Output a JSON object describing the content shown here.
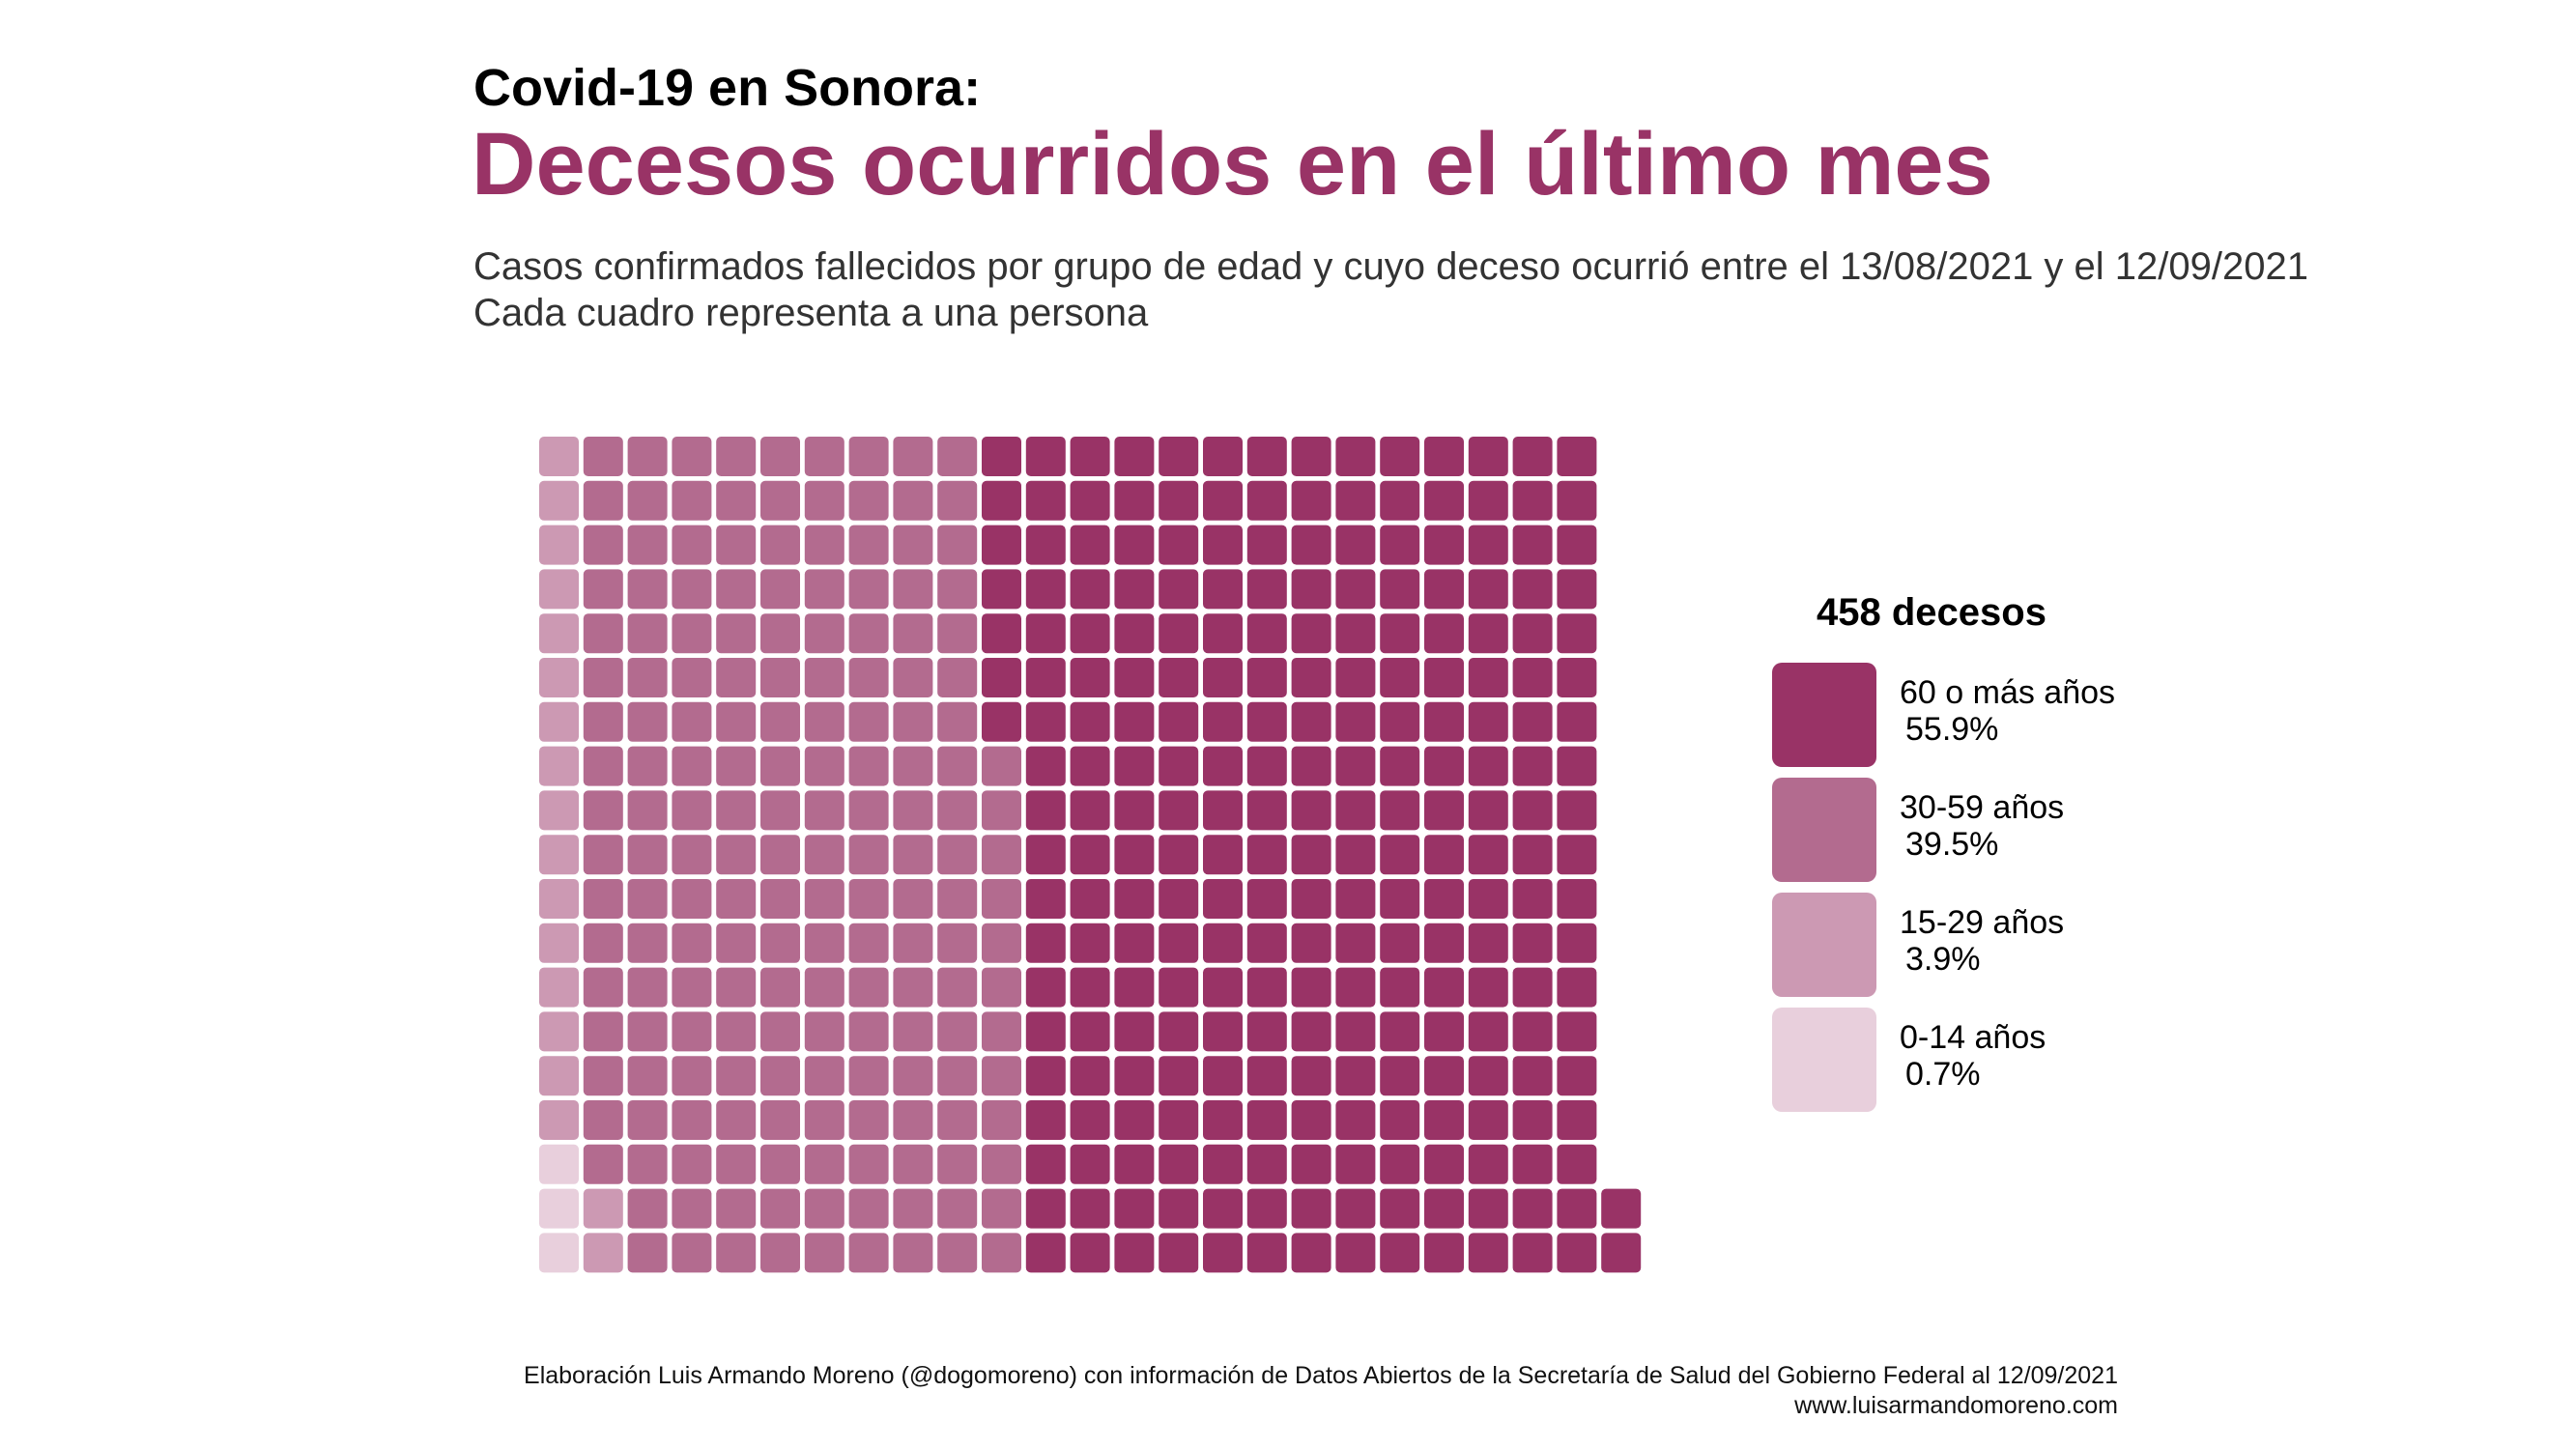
{
  "header": {
    "kicker": "Covid-19 en Sonora:",
    "title": "Decesos ocurridos en el último mes",
    "subtitle_line1": "Casos confirmados fallecidos por grupo de edad y cuyo deceso ocurrió entre el 13/08/2021 y el 12/09/2021",
    "subtitle_line2": "Cada cuadro representa a una persona"
  },
  "chart_data": {
    "type": "waffle",
    "total": 458,
    "total_label": "458 decesos",
    "columns": 25,
    "unit": "Cada cuadro representa a una persona",
    "fill_order": "column-wise, bottom to top, left to right",
    "categories": [
      {
        "name": "0-14 años",
        "pct_label": "0.7%",
        "count": 3,
        "color": "#e8cfdc"
      },
      {
        "name": "15-29 años",
        "pct_label": "3.9%",
        "count": 18,
        "color": "#cc99b3"
      },
      {
        "name": "30-59 años",
        "pct_label": "39.5%",
        "count": 181,
        "color": "#b36b8f"
      },
      {
        "name": "60 o más años",
        "pct_label": "55.9%",
        "count": 256,
        "color": "#993366"
      }
    ],
    "legend_order": [
      "60 o más años",
      "30-59 años",
      "15-29 años",
      "0-14 años"
    ],
    "legend_position": "right"
  },
  "footer": {
    "credit": "Elaboración Luis Armando Moreno (@dogomoreno) con información de Datos Abiertos de la Secretaría de Salud del Gobierno Federal al 12/09/2021",
    "website": "www.luisarmandomoreno.com"
  }
}
